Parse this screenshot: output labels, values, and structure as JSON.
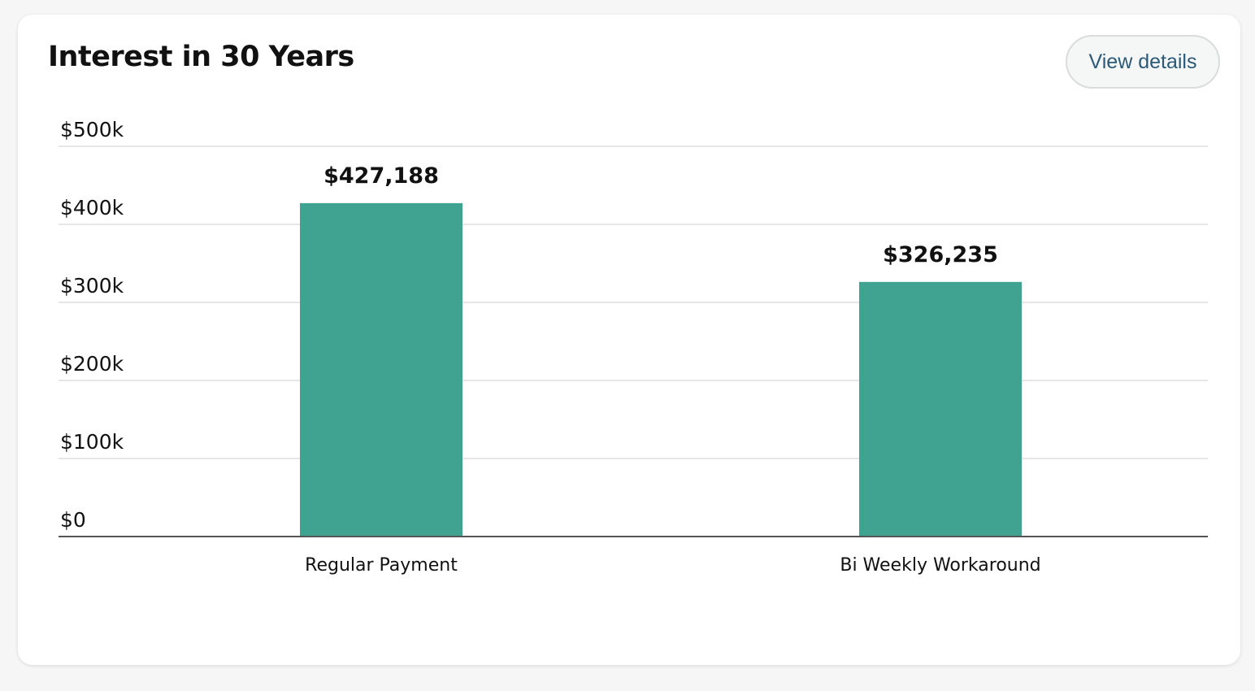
{
  "card": {
    "title": "Interest in 30 Years",
    "view_details_label": "View details"
  },
  "colors": {
    "bar": "#40a392",
    "grid": "#dddddd",
    "axis": "#555555"
  },
  "chart_data": {
    "type": "bar",
    "title": "Interest in 30 Years",
    "xlabel": "",
    "ylabel": "",
    "categories": [
      "Regular Payment",
      "Bi Weekly Workaround"
    ],
    "values": [
      427188,
      326235
    ],
    "data_labels": [
      "$427,188",
      "$326,235"
    ],
    "ylim": [
      0,
      500000
    ],
    "yticks": [
      0,
      100000,
      200000,
      300000,
      400000,
      500000
    ],
    "ytick_labels": [
      "$0",
      "$100k",
      "$200k",
      "$300k",
      "$400k",
      "$500k"
    ],
    "grid": true,
    "legend": "none"
  }
}
